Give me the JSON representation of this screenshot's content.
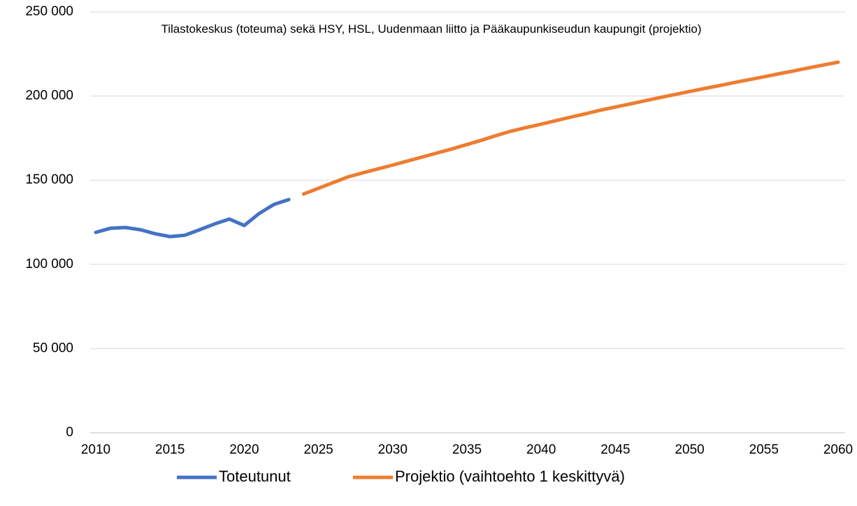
{
  "chart_data": {
    "type": "line",
    "title": "Tilastokeskus (toteuma) sekä HSY, HSL, Uudenmaan liitto ja Pääkaupunkiseudun kaupungit (projektio)",
    "x": [
      2010,
      2011,
      2012,
      2013,
      2014,
      2015,
      2016,
      2017,
      2018,
      2019,
      2020,
      2021,
      2022,
      2023,
      2024,
      2025,
      2026,
      2027,
      2028,
      2029,
      2030,
      2031,
      2032,
      2033,
      2034,
      2035,
      2036,
      2037,
      2038,
      2039,
      2040,
      2041,
      2042,
      2043,
      2044,
      2045,
      2046,
      2047,
      2048,
      2049,
      2050,
      2051,
      2052,
      2053,
      2054,
      2055,
      2056,
      2057,
      2058,
      2059,
      2060
    ],
    "series": [
      {
        "name": "Toteutunut",
        "color": "#4472c4",
        "values": [
          119000,
          121500,
          121900,
          120600,
          118200,
          116500,
          117300,
          120600,
          124000,
          126900,
          123100,
          130200,
          135600,
          138500,
          null,
          null,
          null,
          null,
          null,
          null,
          null,
          null,
          null,
          null,
          null,
          null,
          null,
          null,
          null,
          null,
          null,
          null,
          null,
          null,
          null,
          null,
          null,
          null,
          null,
          null,
          null,
          null,
          null,
          null,
          null,
          null,
          null,
          null,
          null,
          null,
          null
        ]
      },
      {
        "name": "Projektio (vaihtoehto 1 keskittyvä)",
        "color": "#ed7d31",
        "values": [
          null,
          null,
          null,
          null,
          null,
          null,
          null,
          null,
          null,
          null,
          null,
          null,
          null,
          null,
          141800,
          145200,
          148600,
          152000,
          154400,
          156700,
          159000,
          161400,
          163800,
          166200,
          168600,
          171200,
          173800,
          176600,
          179200,
          181300,
          183300,
          185400,
          187500,
          189500,
          191600,
          193500,
          195300,
          197200,
          199100,
          200900,
          202700,
          204500,
          206200,
          208000,
          209700,
          211400,
          213200,
          214900,
          216700,
          218400,
          220100
        ]
      }
    ],
    "xlim": [
      2010,
      2060
    ],
    "xticks": [
      2010,
      2015,
      2020,
      2025,
      2030,
      2035,
      2040,
      2045,
      2050,
      2055,
      2060
    ],
    "ylim": [
      0,
      250000
    ],
    "yticks": [
      0,
      {
        "value": 50000,
        "label": "50 000"
      },
      {
        "value": 100000,
        "label": "100 000"
      },
      {
        "value": 150000,
        "label": "150 000"
      },
      {
        "value": 200000,
        "label": "200 000"
      },
      {
        "value": 250000,
        "label": "250 000"
      }
    ],
    "grid": true,
    "legend": "bottom"
  }
}
